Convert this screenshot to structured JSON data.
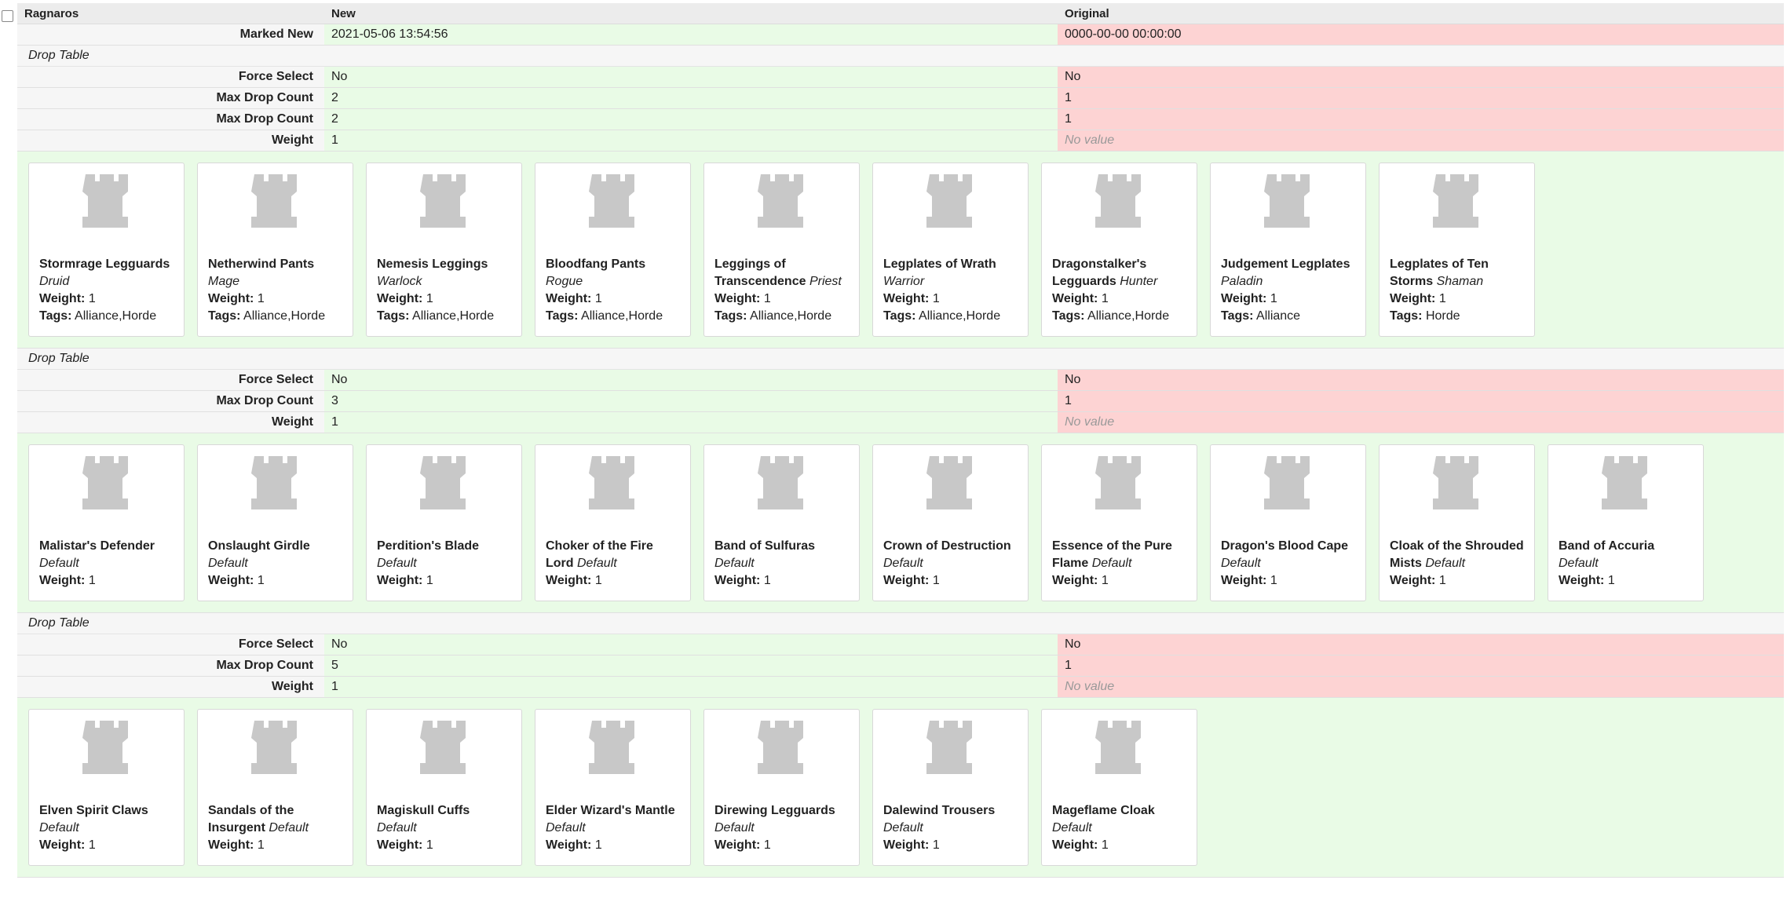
{
  "header": {
    "boss": "Ragnaros",
    "new_label": "New",
    "original_label": "Original"
  },
  "marked_new": {
    "label": "Marked New",
    "new": "2021-05-06 13:54:56",
    "original": "0000-00-00 00:00:00"
  },
  "weight_label": "Weight:",
  "tags_label": "Tags:",
  "tables": [
    {
      "title": "Drop Table",
      "fields": [
        {
          "label": "Force Select",
          "new": "No",
          "original": "No"
        },
        {
          "label": "Max Drop Count",
          "new": "2",
          "original": "1"
        },
        {
          "label": "Max Drop Count",
          "new": "2",
          "original": "1"
        },
        {
          "label": "Weight",
          "new": "1",
          "original": "No value",
          "original_empty": true
        }
      ],
      "items": [
        {
          "name": "Stormrage Legguards",
          "class": "Druid",
          "weight": "1",
          "tags": "Alliance,Horde"
        },
        {
          "name": "Netherwind Pants",
          "class": "Mage",
          "weight": "1",
          "tags": "Alliance,Horde"
        },
        {
          "name": "Nemesis Leggings",
          "class": "Warlock",
          "weight": "1",
          "tags": "Alliance,Horde"
        },
        {
          "name": "Bloodfang Pants",
          "class": "Rogue",
          "weight": "1",
          "tags": "Alliance,Horde"
        },
        {
          "name": "Leggings of Transcendence",
          "class": "Priest",
          "weight": "1",
          "tags": "Alliance,Horde"
        },
        {
          "name": "Legplates of Wrath",
          "class": "Warrior",
          "weight": "1",
          "tags": "Alliance,Horde"
        },
        {
          "name": "Dragonstalker's Legguards",
          "class": "Hunter",
          "weight": "1",
          "tags": "Alliance,Horde"
        },
        {
          "name": "Judgement Legplates",
          "class": "Paladin",
          "weight": "1",
          "tags": "Alliance"
        },
        {
          "name": "Legplates of Ten Storms",
          "class": "Shaman",
          "weight": "1",
          "tags": "Horde"
        }
      ]
    },
    {
      "title": "Drop Table",
      "fields": [
        {
          "label": "Force Select",
          "new": "No",
          "original": "No"
        },
        {
          "label": "Max Drop Count",
          "new": "3",
          "original": "1"
        },
        {
          "label": "Weight",
          "new": "1",
          "original": "No value",
          "original_empty": true
        }
      ],
      "items": [
        {
          "name": "Malistar's Defender",
          "class": "Default",
          "weight": "1"
        },
        {
          "name": "Onslaught Girdle",
          "class": "Default",
          "weight": "1"
        },
        {
          "name": "Perdition's Blade",
          "class": "Default",
          "weight": "1"
        },
        {
          "name": "Choker of the Fire Lord",
          "class": "Default",
          "weight": "1"
        },
        {
          "name": "Band of Sulfuras",
          "class": "Default",
          "weight": "1"
        },
        {
          "name": "Crown of Destruction",
          "class": "Default",
          "weight": "1"
        },
        {
          "name": "Essence of the Pure Flame",
          "class": "Default",
          "weight": "1"
        },
        {
          "name": "Dragon's Blood Cape",
          "class": "Default",
          "weight": "1"
        },
        {
          "name": "Cloak of the Shrouded Mists",
          "class": "Default",
          "weight": "1"
        },
        {
          "name": "Band of Accuria",
          "class": "Default",
          "weight": "1"
        }
      ]
    },
    {
      "title": "Drop Table",
      "fields": [
        {
          "label": "Force Select",
          "new": "No",
          "original": "No"
        },
        {
          "label": "Max Drop Count",
          "new": "5",
          "original": "1"
        },
        {
          "label": "Weight",
          "new": "1",
          "original": "No value",
          "original_empty": true
        }
      ],
      "items": [
        {
          "name": "Elven Spirit Claws",
          "class": "Default",
          "weight": "1"
        },
        {
          "name": "Sandals of the Insurgent",
          "class": "Default",
          "weight": "1"
        },
        {
          "name": "Magiskull Cuffs",
          "class": "Default",
          "weight": "1"
        },
        {
          "name": "Elder Wizard's Mantle",
          "class": "Default",
          "weight": "1"
        },
        {
          "name": "Direwing Legguards",
          "class": "Default",
          "weight": "1"
        },
        {
          "name": "Dalewind Trousers",
          "class": "Default",
          "weight": "1"
        },
        {
          "name": "Mageflame Cloak",
          "class": "Default",
          "weight": "1"
        }
      ]
    }
  ]
}
